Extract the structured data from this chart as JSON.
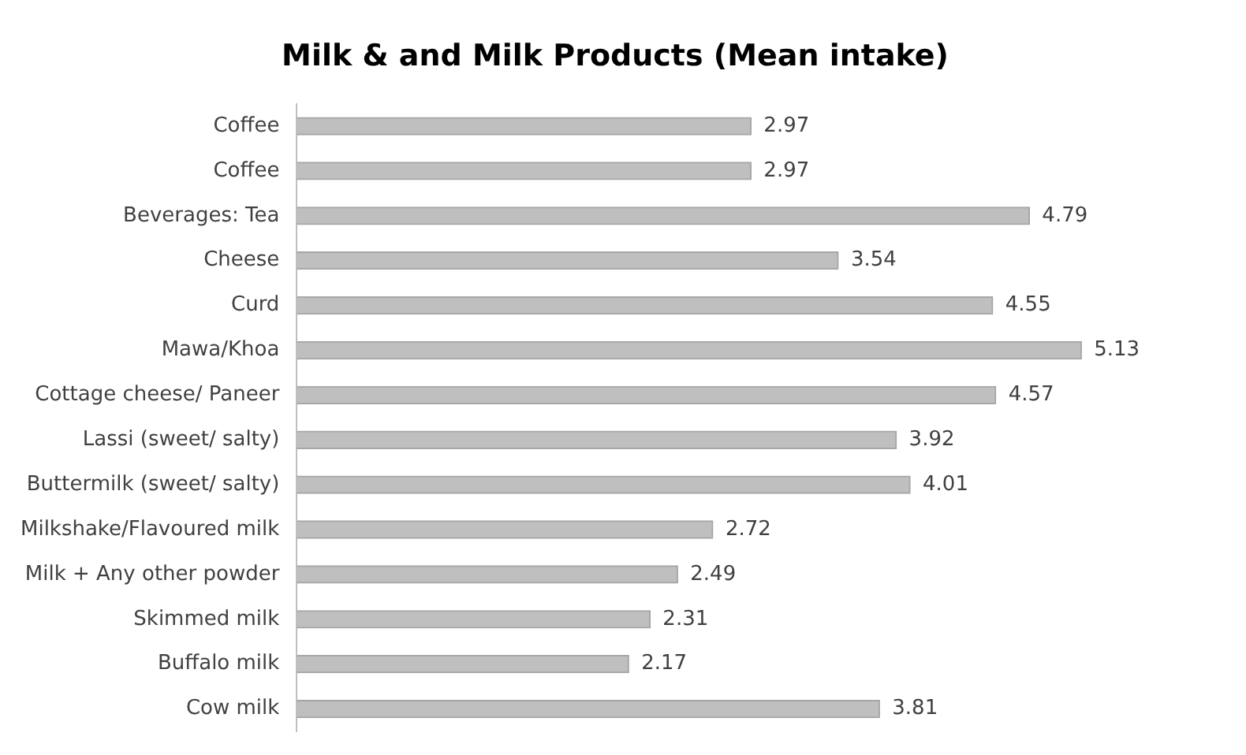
{
  "chart_data": {
    "type": "bar",
    "orientation": "horizontal",
    "title": "Milk & and Milk Products (Mean intake)",
    "categories": [
      "Coffee",
      "Coffee",
      "Beverages: Tea",
      "Cheese",
      "Curd",
      "Mawa/Khoa",
      "Cottage cheese/ Paneer",
      "Lassi (sweet/ salty)",
      "Buttermilk (sweet/ salty)",
      "Milkshake/Flavoured milk",
      "Milk + Any other powder",
      "Skimmed milk",
      "Buffalo milk",
      "Cow milk"
    ],
    "values": [
      2.97,
      2.97,
      4.79,
      3.54,
      4.55,
      5.13,
      4.57,
      3.92,
      4.01,
      2.72,
      2.49,
      2.31,
      2.17,
      3.81
    ],
    "color": "#bfbfbf",
    "data_labels": true,
    "grid": false,
    "legend": false
  }
}
